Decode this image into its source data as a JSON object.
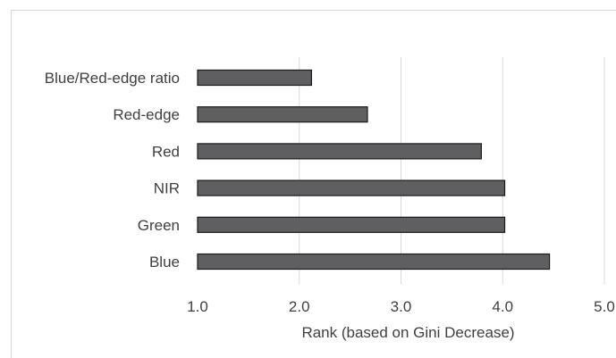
{
  "chart_data": {
    "type": "bar",
    "orientation": "horizontal",
    "categories": [
      "Blue/Red-edge ratio",
      "Red-edge",
      "Red",
      "NIR",
      "Green",
      "Blue"
    ],
    "values": [
      2.12,
      2.67,
      3.79,
      4.02,
      4.02,
      4.46
    ],
    "xlabel": "Rank (based on Gini Decrease)",
    "ylabel": "",
    "xlim": [
      1.0,
      5.0
    ],
    "xticks": [
      "1.0",
      "2.0",
      "3.0",
      "4.0",
      "5.0"
    ],
    "xtick_values": [
      1,
      2,
      3,
      4,
      5
    ],
    "grid": "vertical",
    "bar_color": "#5f5f62",
    "bar_edge_color": "#1a1a1a",
    "grid_color": "#d9d9d9"
  }
}
